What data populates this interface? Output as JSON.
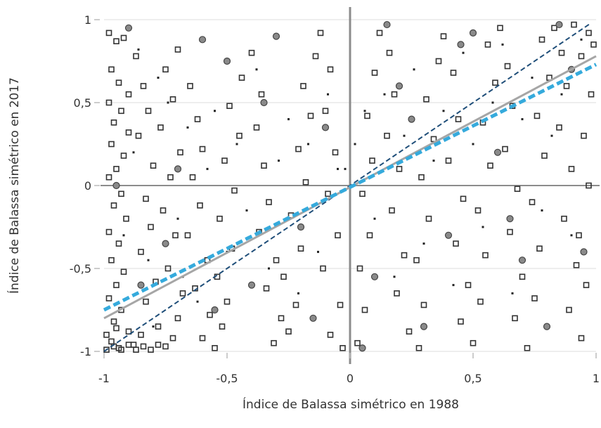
{
  "chart_data": {
    "type": "scatter",
    "title": "",
    "xlabel": "Índice de Balassa simétrico en 1988",
    "ylabel": "Índice de Balassa simétrico en 2017",
    "xlim": [
      -1,
      1
    ],
    "ylim": [
      -1,
      1
    ],
    "x_ticks": [
      -1,
      -0.5,
      0,
      0.5,
      1
    ],
    "x_tick_labels": [
      "-1",
      "-0,5",
      "0",
      "0,5",
      "1"
    ],
    "y_ticks": [
      -1,
      -0.5,
      0,
      0.5,
      1
    ],
    "y_tick_labels": [
      "-1",
      "-0,5",
      "0",
      "0,5",
      "1"
    ],
    "grid": true,
    "legend": "none",
    "reference_lines": [
      {
        "kind": "identity",
        "style": "dashed",
        "color": "#1f4e79",
        "from": [
          -1,
          -1
        ],
        "to": [
          0.98,
          0.98
        ]
      },
      {
        "kind": "fit-gray",
        "style": "solid",
        "color": "#a6a6a6",
        "from": [
          -1,
          -0.8
        ],
        "to": [
          1,
          0.78
        ]
      },
      {
        "kind": "fit-blue",
        "style": "dashed",
        "color": "#35aadc",
        "from": [
          -1,
          -0.75
        ],
        "to": [
          1,
          0.73
        ]
      }
    ],
    "series": [
      {
        "marker": "square",
        "points": [
          [
            -0.98,
            0.92
          ],
          [
            -0.95,
            0.87
          ],
          [
            -0.92,
            0.89
          ],
          [
            -0.97,
            0.7
          ],
          [
            -0.94,
            0.62
          ],
          [
            -0.9,
            0.55
          ],
          [
            -0.98,
            0.5
          ],
          [
            -0.93,
            0.45
          ],
          [
            -0.96,
            0.38
          ],
          [
            -0.9,
            0.32
          ],
          [
            -0.97,
            0.25
          ],
          [
            -0.92,
            0.18
          ],
          [
            -0.95,
            0.1
          ],
          [
            -0.98,
            0.05
          ],
          [
            -0.93,
            -0.05
          ],
          [
            -0.96,
            -0.12
          ],
          [
            -0.91,
            -0.2
          ],
          [
            -0.98,
            -0.28
          ],
          [
            -0.94,
            -0.35
          ],
          [
            -0.97,
            -0.45
          ],
          [
            -0.92,
            -0.52
          ],
          [
            -0.95,
            -0.6
          ],
          [
            -0.98,
            -0.68
          ],
          [
            -0.93,
            -0.75
          ],
          [
            -0.96,
            -0.82
          ],
          [
            -0.9,
            -0.88
          ],
          [
            -0.97,
            -0.94
          ],
          [
            -0.94,
            -0.98
          ],
          [
            -0.88,
            -0.96
          ],
          [
            -0.85,
            -0.9
          ],
          [
            -0.87,
            0.78
          ],
          [
            -0.84,
            0.6
          ],
          [
            -0.82,
            0.45
          ],
          [
            -0.86,
            0.3
          ],
          [
            -0.8,
            0.12
          ],
          [
            -0.83,
            -0.08
          ],
          [
            -0.81,
            -0.25
          ],
          [
            -0.85,
            -0.4
          ],
          [
            -0.79,
            -0.58
          ],
          [
            -0.83,
            -0.7
          ],
          [
            -0.78,
            -0.85
          ],
          [
            -0.75,
            -0.97
          ],
          [
            -0.72,
            -0.92
          ],
          [
            -0.7,
            -0.8
          ],
          [
            -0.68,
            -0.65
          ],
          [
            -0.74,
            -0.5
          ],
          [
            -0.71,
            -0.3
          ],
          [
            -0.76,
            -0.15
          ],
          [
            -0.73,
            0.05
          ],
          [
            -0.69,
            0.2
          ],
          [
            -0.77,
            0.35
          ],
          [
            -0.72,
            0.52
          ],
          [
            -0.75,
            0.7
          ],
          [
            -0.7,
            0.82
          ],
          [
            -0.65,
            0.6
          ],
          [
            -0.62,
            0.4
          ],
          [
            -0.6,
            0.22
          ],
          [
            -0.64,
            0.05
          ],
          [
            -0.61,
            -0.12
          ],
          [
            -0.66,
            -0.3
          ],
          [
            -0.58,
            -0.45
          ],
          [
            -0.63,
            -0.62
          ],
          [
            -0.57,
            -0.78
          ],
          [
            -0.6,
            -0.92
          ],
          [
            -0.55,
            -0.98
          ],
          [
            -0.52,
            -0.85
          ],
          [
            -0.5,
            -0.7
          ],
          [
            -0.54,
            -0.55
          ],
          [
            -0.48,
            -0.38
          ],
          [
            -0.53,
            -0.2
          ],
          [
            -0.47,
            -0.03
          ],
          [
            -0.51,
            0.15
          ],
          [
            -0.45,
            0.3
          ],
          [
            -0.49,
            0.48
          ],
          [
            -0.44,
            0.65
          ],
          [
            -0.4,
            0.8
          ],
          [
            -0.36,
            0.55
          ],
          [
            -0.38,
            0.35
          ],
          [
            -0.35,
            0.12
          ],
          [
            -0.33,
            -0.1
          ],
          [
            -0.37,
            -0.28
          ],
          [
            -0.3,
            -0.45
          ],
          [
            -0.34,
            -0.62
          ],
          [
            -0.28,
            -0.8
          ],
          [
            -0.31,
            -0.95
          ],
          [
            -0.25,
            -0.88
          ],
          [
            -0.22,
            -0.72
          ],
          [
            -0.27,
            -0.55
          ],
          [
            -0.2,
            -0.38
          ],
          [
            -0.24,
            -0.18
          ],
          [
            -0.18,
            0.02
          ],
          [
            -0.21,
            0.22
          ],
          [
            -0.16,
            0.42
          ],
          [
            -0.19,
            0.6
          ],
          [
            -0.14,
            0.78
          ],
          [
            -0.12,
            0.92
          ],
          [
            -0.08,
            0.7
          ],
          [
            -0.1,
            0.45
          ],
          [
            -0.06,
            0.2
          ],
          [
            -0.09,
            -0.05
          ],
          [
            -0.05,
            -0.3
          ],
          [
            -0.11,
            -0.5
          ],
          [
            -0.04,
            -0.72
          ],
          [
            -0.08,
            -0.9
          ],
          [
            -0.03,
            -0.98
          ],
          [
            0.03,
            -0.95
          ],
          [
            0.06,
            -0.75
          ],
          [
            0.04,
            -0.5
          ],
          [
            0.08,
            -0.3
          ],
          [
            0.05,
            -0.05
          ],
          [
            0.09,
            0.15
          ],
          [
            0.07,
            0.42
          ],
          [
            0.1,
            0.68
          ],
          [
            0.12,
            0.92
          ],
          [
            0.16,
            0.8
          ],
          [
            0.18,
            0.55
          ],
          [
            0.15,
            0.3
          ],
          [
            0.2,
            0.1
          ],
          [
            0.17,
            -0.15
          ],
          [
            0.22,
            -0.42
          ],
          [
            0.19,
            -0.65
          ],
          [
            0.24,
            -0.88
          ],
          [
            0.28,
            -0.98
          ],
          [
            0.3,
            -0.72
          ],
          [
            0.27,
            -0.45
          ],
          [
            0.32,
            -0.2
          ],
          [
            0.29,
            0.05
          ],
          [
            0.34,
            0.28
          ],
          [
            0.31,
            0.52
          ],
          [
            0.36,
            0.75
          ],
          [
            0.38,
            0.9
          ],
          [
            0.42,
            0.68
          ],
          [
            0.44,
            0.4
          ],
          [
            0.4,
            0.15
          ],
          [
            0.46,
            -0.08
          ],
          [
            0.43,
            -0.35
          ],
          [
            0.48,
            -0.6
          ],
          [
            0.45,
            -0.82
          ],
          [
            0.5,
            -0.95
          ],
          [
            0.53,
            -0.7
          ],
          [
            0.55,
            -0.42
          ],
          [
            0.52,
            -0.15
          ],
          [
            0.57,
            0.12
          ],
          [
            0.54,
            0.38
          ],
          [
            0.59,
            0.62
          ],
          [
            0.56,
            0.85
          ],
          [
            0.61,
            0.95
          ],
          [
            0.64,
            0.72
          ],
          [
            0.66,
            0.48
          ],
          [
            0.63,
            0.22
          ],
          [
            0.68,
            -0.02
          ],
          [
            0.65,
            -0.28
          ],
          [
            0.7,
            -0.55
          ],
          [
            0.67,
            -0.8
          ],
          [
            0.72,
            -0.98
          ],
          [
            0.75,
            -0.68
          ],
          [
            0.77,
            -0.38
          ],
          [
            0.74,
            -0.1
          ],
          [
            0.79,
            0.18
          ],
          [
            0.76,
            0.42
          ],
          [
            0.81,
            0.65
          ],
          [
            0.78,
            0.88
          ],
          [
            0.83,
            0.95
          ],
          [
            0.86,
            0.8
          ],
          [
            0.88,
            0.6
          ],
          [
            0.85,
            0.35
          ],
          [
            0.9,
            0.1
          ],
          [
            0.87,
            -0.2
          ],
          [
            0.92,
            -0.48
          ],
          [
            0.89,
            -0.75
          ],
          [
            0.94,
            -0.92
          ],
          [
            0.96,
            -0.6
          ],
          [
            0.93,
            -0.3
          ],
          [
            0.97,
            0.0
          ],
          [
            0.95,
            0.3
          ],
          [
            0.98,
            0.55
          ],
          [
            0.94,
            0.78
          ],
          [
            0.97,
            0.92
          ],
          [
            0.91,
            0.97
          ],
          [
            0.99,
            0.85
          ],
          [
            -0.99,
            -0.99
          ],
          [
            -0.96,
            -0.97
          ],
          [
            -0.93,
            -0.99
          ],
          [
            -0.9,
            -0.96
          ],
          [
            -0.87,
            -0.99
          ],
          [
            -0.84,
            -0.97
          ],
          [
            -0.81,
            -0.99
          ],
          [
            -0.78,
            -0.96
          ],
          [
            -0.99,
            -0.9
          ],
          [
            -0.95,
            -0.86
          ]
        ]
      },
      {
        "marker": "circle",
        "points": [
          [
            -0.9,
            0.95
          ],
          [
            -0.6,
            0.88
          ],
          [
            -0.3,
            0.9
          ],
          [
            0.15,
            0.97
          ],
          [
            0.5,
            0.92
          ],
          [
            0.85,
            0.97
          ],
          [
            -0.95,
            0.0
          ],
          [
            -0.4,
            -0.6
          ],
          [
            0.3,
            -0.85
          ],
          [
            0.7,
            -0.45
          ],
          [
            -0.7,
            0.1
          ],
          [
            -0.2,
            -0.25
          ],
          [
            0.2,
            0.6
          ],
          [
            0.9,
            0.7
          ],
          [
            -0.85,
            -0.6
          ],
          [
            0.05,
            -0.98
          ],
          [
            0.6,
            0.2
          ],
          [
            -0.5,
            0.75
          ],
          [
            0.4,
            -0.3
          ],
          [
            -0.1,
            0.35
          ],
          [
            0.8,
            -0.85
          ],
          [
            -0.75,
            -0.35
          ],
          [
            0.25,
            0.4
          ],
          [
            0.65,
            -0.2
          ],
          [
            -0.35,
            0.5
          ],
          [
            0.95,
            -0.4
          ],
          [
            -0.15,
            -0.8
          ],
          [
            0.45,
            0.85
          ],
          [
            -0.55,
            -0.75
          ],
          [
            0.1,
            -0.55
          ]
        ]
      },
      {
        "marker": "dot",
        "points": [
          [
            -0.88,
            0.2
          ],
          [
            -0.82,
            -0.45
          ],
          [
            -0.78,
            0.65
          ],
          [
            -0.7,
            -0.2
          ],
          [
            -0.66,
            0.35
          ],
          [
            -0.62,
            -0.7
          ],
          [
            -0.58,
            0.1
          ],
          [
            -0.55,
            0.45
          ],
          [
            -0.5,
            -0.4
          ],
          [
            -0.46,
            0.25
          ],
          [
            -0.42,
            -0.15
          ],
          [
            -0.38,
            0.7
          ],
          [
            -0.33,
            -0.5
          ],
          [
            -0.29,
            0.15
          ],
          [
            -0.25,
            0.4
          ],
          [
            -0.21,
            -0.65
          ],
          [
            -0.17,
            0.25
          ],
          [
            -0.13,
            -0.4
          ],
          [
            -0.09,
            0.55
          ],
          [
            -0.05,
            0.1
          ],
          [
            -0.02,
            0.1
          ],
          [
            0.02,
            0.25
          ],
          [
            0.06,
            0.45
          ],
          [
            0.1,
            -0.2
          ],
          [
            0.14,
            0.55
          ],
          [
            0.18,
            -0.55
          ],
          [
            0.22,
            0.3
          ],
          [
            0.26,
            0.7
          ],
          [
            0.3,
            -0.35
          ],
          [
            0.34,
            0.15
          ],
          [
            0.38,
            0.45
          ],
          [
            0.42,
            -0.6
          ],
          [
            0.46,
            0.8
          ],
          [
            0.5,
            0.25
          ],
          [
            0.54,
            -0.25
          ],
          [
            0.58,
            0.5
          ],
          [
            0.62,
            0.85
          ],
          [
            0.66,
            -0.65
          ],
          [
            0.7,
            0.4
          ],
          [
            0.74,
            0.65
          ],
          [
            0.78,
            -0.15
          ],
          [
            0.82,
            0.3
          ],
          [
            0.86,
            0.55
          ],
          [
            0.9,
            -0.3
          ],
          [
            0.94,
            0.88
          ],
          [
            -0.92,
            -0.3
          ],
          [
            -0.86,
            0.82
          ],
          [
            -0.8,
            -0.85
          ],
          [
            -0.74,
            0.5
          ],
          [
            -0.68,
            -0.55
          ]
        ]
      }
    ]
  }
}
